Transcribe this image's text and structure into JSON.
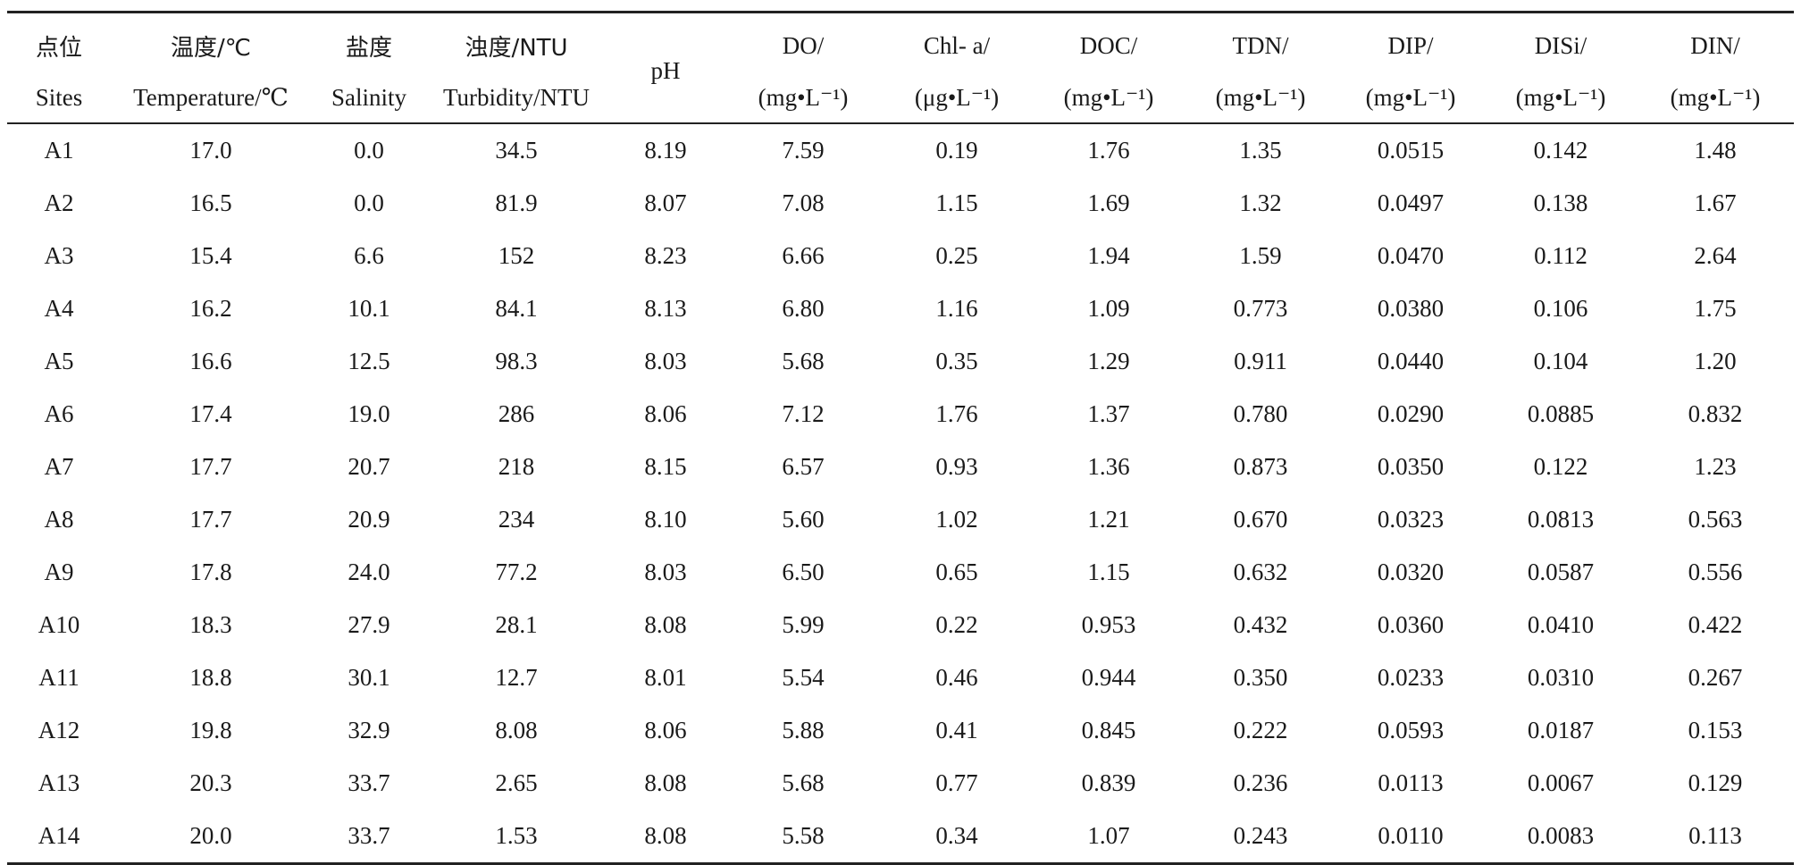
{
  "table": {
    "header_top": [
      "点位",
      "温度/℃",
      "盐度",
      "浊度/NTU",
      "pH",
      "DO/",
      "Chl- a/",
      "DOC/",
      "TDN/",
      "DIP/",
      "DISi/",
      "DIN/"
    ],
    "header_bottom": [
      "Sites",
      "Temperature/℃",
      "Salinity",
      "Turbidity/NTU",
      "(mg•L⁻¹)",
      "(μg•L⁻¹)",
      "(mg•L⁻¹)",
      "(mg•L⁻¹)",
      "(mg•L⁻¹)",
      "(mg•L⁻¹)",
      "(mg•L⁻¹)"
    ],
    "rows": [
      [
        "A1",
        "17.0",
        "0.0",
        "34.5",
        "8.19",
        "7.59",
        "0.19",
        "1.76",
        "1.35",
        "0.0515",
        "0.142",
        "1.48"
      ],
      [
        "A2",
        "16.5",
        "0.0",
        "81.9",
        "8.07",
        "7.08",
        "1.15",
        "1.69",
        "1.32",
        "0.0497",
        "0.138",
        "1.67"
      ],
      [
        "A3",
        "15.4",
        "6.6",
        "152",
        "8.23",
        "6.66",
        "0.25",
        "1.94",
        "1.59",
        "0.0470",
        "0.112",
        "2.64"
      ],
      [
        "A4",
        "16.2",
        "10.1",
        "84.1",
        "8.13",
        "6.80",
        "1.16",
        "1.09",
        "0.773",
        "0.0380",
        "0.106",
        "1.75"
      ],
      [
        "A5",
        "16.6",
        "12.5",
        "98.3",
        "8.03",
        "5.68",
        "0.35",
        "1.29",
        "0.911",
        "0.0440",
        "0.104",
        "1.20"
      ],
      [
        "A6",
        "17.4",
        "19.0",
        "286",
        "8.06",
        "7.12",
        "1.76",
        "1.37",
        "0.780",
        "0.0290",
        "0.0885",
        "0.832"
      ],
      [
        "A7",
        "17.7",
        "20.7",
        "218",
        "8.15",
        "6.57",
        "0.93",
        "1.36",
        "0.873",
        "0.0350",
        "0.122",
        "1.23"
      ],
      [
        "A8",
        "17.7",
        "20.9",
        "234",
        "8.10",
        "5.60",
        "1.02",
        "1.21",
        "0.670",
        "0.0323",
        "0.0813",
        "0.563"
      ],
      [
        "A9",
        "17.8",
        "24.0",
        "77.2",
        "8.03",
        "6.50",
        "0.65",
        "1.15",
        "0.632",
        "0.0320",
        "0.0587",
        "0.556"
      ],
      [
        "A10",
        "18.3",
        "27.9",
        "28.1",
        "8.08",
        "5.99",
        "0.22",
        "0.953",
        "0.432",
        "0.0360",
        "0.0410",
        "0.422"
      ],
      [
        "A11",
        "18.8",
        "30.1",
        "12.7",
        "8.01",
        "5.54",
        "0.46",
        "0.944",
        "0.350",
        "0.0233",
        "0.0310",
        "0.267"
      ],
      [
        "A12",
        "19.8",
        "32.9",
        "8.08",
        "8.06",
        "5.88",
        "0.41",
        "0.845",
        "0.222",
        "0.0593",
        "0.0187",
        "0.153"
      ],
      [
        "A13",
        "20.3",
        "33.7",
        "2.65",
        "8.08",
        "5.68",
        "0.77",
        "0.839",
        "0.236",
        "0.0113",
        "0.0067",
        "0.129"
      ],
      [
        "A14",
        "20.0",
        "33.7",
        "1.53",
        "8.08",
        "5.58",
        "0.34",
        "1.07",
        "0.243",
        "0.0110",
        "0.0083",
        "0.113"
      ]
    ]
  }
}
